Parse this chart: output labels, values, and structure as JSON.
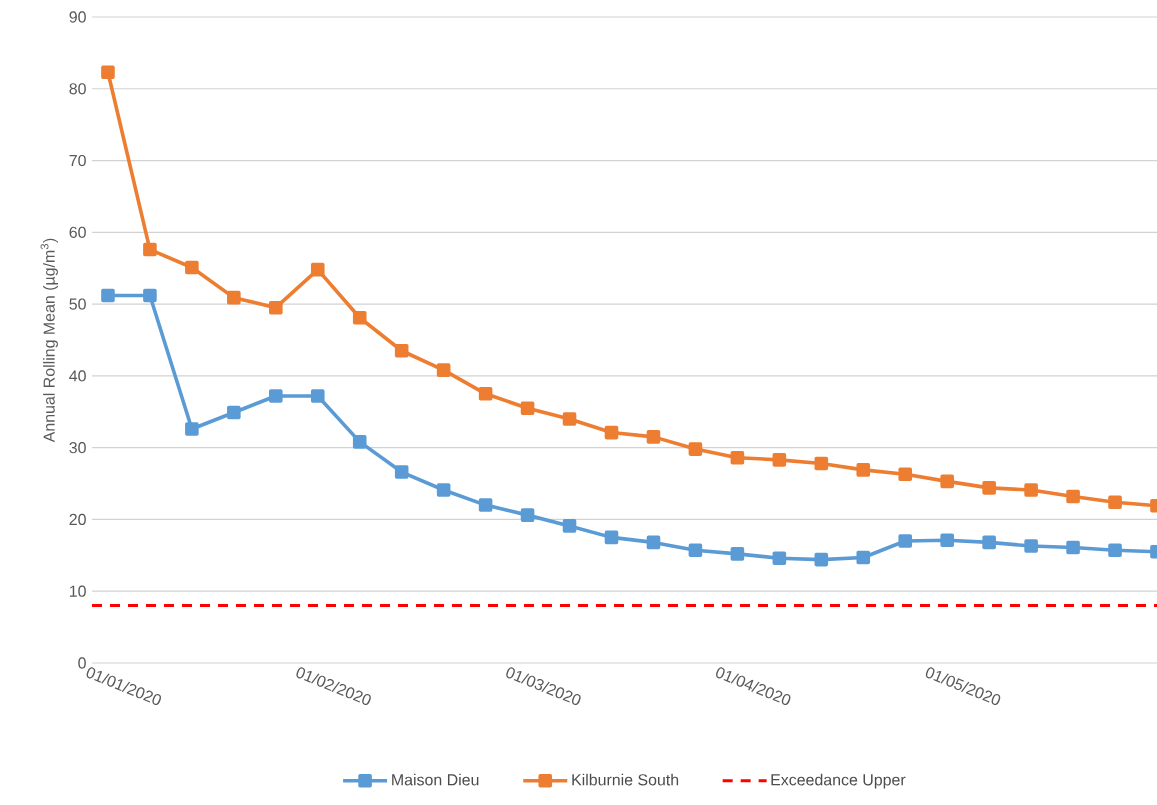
{
  "chart_data": {
    "type": "line",
    "ylabel": "Annual Rolling Mean (µg/m$^{3}$)",
    "categories": [
      "01/01/2020",
      null,
      null,
      null,
      null,
      "01/02/2020",
      null,
      null,
      null,
      null,
      "01/03/2020",
      null,
      null,
      null,
      null,
      "01/04/2020",
      null,
      null,
      null,
      null,
      "01/05/2020",
      null,
      null,
      null,
      null,
      null
    ],
    "series": [
      {
        "name": "Maison Dieu",
        "color": "#5b9bd5",
        "values": [
          51.2,
          51.2,
          32.6,
          34.9,
          37.2,
          37.2,
          30.8,
          26.6,
          24.1,
          22.0,
          20.6,
          19.1,
          17.5,
          16.8,
          15.7,
          15.2,
          14.6,
          14.4,
          14.7,
          17.0,
          17.1,
          16.8,
          16.3,
          16.1,
          15.7,
          15.5
        ]
      },
      {
        "name": "Kilburnie South",
        "color": "#ed7d31",
        "values": [
          82.3,
          57.6,
          55.1,
          50.9,
          49.5,
          54.8,
          48.1,
          43.5,
          40.8,
          37.5,
          35.5,
          34.0,
          32.1,
          31.5,
          29.8,
          28.6,
          28.3,
          27.8,
          26.9,
          26.3,
          25.3,
          24.4,
          24.1,
          23.2,
          22.4,
          21.9
        ]
      }
    ],
    "ylim": [
      0,
      90
    ],
    "yticks": [
      0,
      10,
      20,
      30,
      40,
      50,
      60,
      70,
      80,
      90
    ],
    "grid": "y",
    "legend": "bottom",
    "marker": "square",
    "ref_lines": [
      {
        "axis": "y",
        "value": 8,
        "label": "Exceedance Upper",
        "color": "#ff0000",
        "line_style": "dashed"
      }
    ]
  }
}
